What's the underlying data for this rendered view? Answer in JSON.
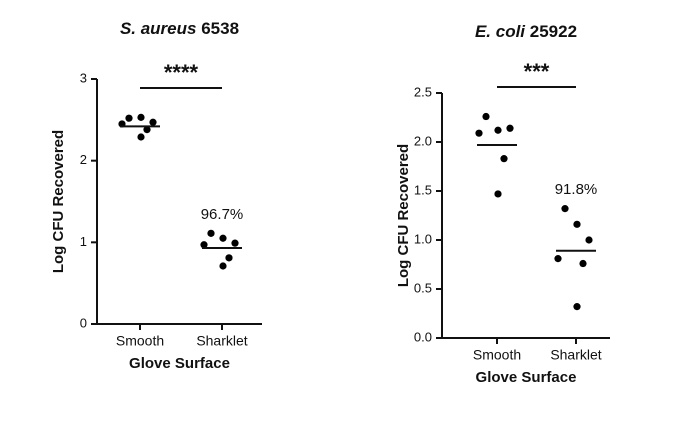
{
  "chart_data": [
    {
      "type": "dot_plot",
      "title_species": "S. aureus",
      "title_strain": "6538",
      "categories": [
        "Smooth",
        "Sharklet"
      ],
      "values": [
        [
          2.52,
          2.53,
          2.47,
          2.45,
          2.38,
          2.29
        ],
        [
          1.11,
          1.05,
          0.99,
          0.97,
          0.81,
          0.71
        ]
      ],
      "center_lines": [
        2.42,
        0.93
      ],
      "color": "#000000",
      "ylim": [
        0,
        3
      ],
      "yticks": [
        0,
        1,
        2,
        3
      ],
      "x_label": "Glove Surface",
      "y_label": "Log CFU Recovered",
      "significance": "****",
      "reduction": "96.7%"
    },
    {
      "type": "dot_plot",
      "title_species": "E. coli",
      "title_strain": "25922",
      "categories": [
        "Smooth",
        "Sharklet"
      ],
      "values": [
        [
          2.26,
          2.12,
          2.14,
          2.09,
          1.83,
          1.47
        ],
        [
          1.32,
          1.16,
          1.0,
          0.81,
          0.76,
          0.32
        ]
      ],
      "center_lines": [
        1.97,
        0.89
      ],
      "color": "#000000",
      "ylim": [
        0,
        2.5
      ],
      "yticks": [
        {
          "value": 0,
          "label": "0.0"
        },
        {
          "value": 0.5,
          "label": "0.5"
        },
        {
          "value": 1,
          "label": "1.0"
        },
        {
          "value": 1.5,
          "label": "1.5"
        },
        {
          "value": 2,
          "label": "2.0"
        },
        {
          "value": 2.5,
          "label": "2.5"
        }
      ],
      "x_label": "Glove Surface",
      "y_label": "Log CFU Recovered",
      "significance": "***",
      "reduction": "91.8%"
    }
  ]
}
